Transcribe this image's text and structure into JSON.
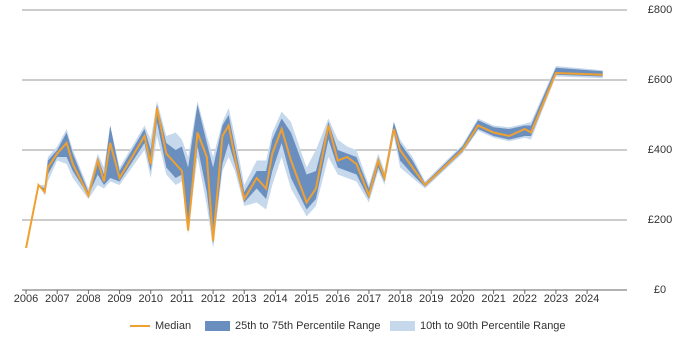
{
  "chart_data": {
    "type": "line",
    "x": [
      2006.0,
      2006.4,
      2006.6,
      2006.7,
      2007.0,
      2007.3,
      2007.5,
      2008.0,
      2008.3,
      2008.5,
      2008.7,
      2009.0,
      2009.8,
      2010.0,
      2010.2,
      2010.5,
      2010.8,
      2011.0,
      2011.2,
      2011.5,
      2011.8,
      2012.0,
      2012.3,
      2012.5,
      2012.7,
      2013.0,
      2013.4,
      2013.7,
      2013.9,
      2014.2,
      2014.5,
      2015.0,
      2015.3,
      2015.7,
      2016.0,
      2016.3,
      2016.6,
      2017.0,
      2017.3,
      2017.5,
      2017.8,
      2018.0,
      2018.4,
      2018.8,
      2020.0,
      2020.5,
      2021.0,
      2021.5,
      2022.0,
      2022.2,
      2023.0,
      2024.5
    ],
    "series": [
      {
        "name": "Median",
        "color": "#f0a030",
        "values": [
          120,
          300,
          280,
          350,
          390,
          420,
          360,
          270,
          370,
          310,
          420,
          320,
          440,
          360,
          520,
          390,
          360,
          340,
          170,
          450,
          380,
          140,
          440,
          470,
          380,
          260,
          320,
          290,
          390,
          460,
          370,
          250,
          290,
          470,
          370,
          380,
          360,
          270,
          370,
          320,
          460,
          400,
          350,
          300,
          400,
          470,
          450,
          440,
          460,
          450,
          620,
          615
        ]
      }
    ],
    "bands": [
      {
        "name": "25th to 75th Percentile Range",
        "color": "#6a8fbf",
        "lower": [
          120,
          300,
          280,
          330,
          380,
          380,
          340,
          270,
          330,
          300,
          320,
          310,
          420,
          340,
          480,
          350,
          320,
          330,
          170,
          410,
          280,
          130,
          360,
          420,
          360,
          250,
          290,
          260,
          340,
          420,
          320,
          230,
          260,
          430,
          350,
          340,
          330,
          260,
          350,
          310,
          450,
          370,
          330,
          295,
          395,
          460,
          440,
          430,
          440,
          440,
          615,
          610
        ],
        "upper": [
          120,
          300,
          290,
          370,
          400,
          450,
          390,
          280,
          380,
          330,
          470,
          340,
          460,
          400,
          530,
          420,
          400,
          410,
          350,
          530,
          420,
          350,
          470,
          500,
          410,
          280,
          340,
          340,
          430,
          490,
          450,
          330,
          340,
          480,
          400,
          390,
          380,
          290,
          380,
          330,
          480,
          420,
          370,
          305,
          410,
          485,
          465,
          460,
          470,
          470,
          635,
          625
        ]
      },
      {
        "name": "10th to 90th Percentile Range",
        "color": "#c6d8ec",
        "lower": [
          120,
          300,
          270,
          310,
          370,
          360,
          320,
          260,
          300,
          290,
          310,
          300,
          400,
          320,
          440,
          330,
          300,
          310,
          160,
          380,
          240,
          120,
          340,
          380,
          340,
          240,
          250,
          230,
          300,
          380,
          290,
          210,
          240,
          380,
          330,
          320,
          310,
          250,
          340,
          300,
          440,
          350,
          320,
          290,
          390,
          455,
          435,
          425,
          435,
          430,
          610,
          605
        ],
        "upper": [
          120,
          300,
          300,
          380,
          410,
          460,
          400,
          290,
          390,
          350,
          470,
          350,
          470,
          430,
          540,
          440,
          450,
          430,
          380,
          540,
          440,
          380,
          480,
          520,
          440,
          300,
          370,
          370,
          450,
          510,
          480,
          350,
          400,
          490,
          430,
          410,
          400,
          300,
          390,
          340,
          480,
          430,
          380,
          310,
          415,
          490,
          470,
          465,
          475,
          480,
          640,
          628
        ]
      }
    ],
    "xlim": [
      2005.87,
      2025.28
    ],
    "xticks": [
      2006,
      2007,
      2008,
      2009,
      2010,
      2011,
      2012,
      2013,
      2014,
      2015,
      2016,
      2017,
      2018,
      2019,
      2020,
      2021,
      2022,
      2023,
      2024
    ],
    "ylim": [
      0,
      800
    ],
    "yticks": [
      {
        "value": 0,
        "label": "£0"
      },
      {
        "value": 200,
        "label": "£200"
      },
      {
        "value": 400,
        "label": "£400"
      },
      {
        "value": 600,
        "label": "£600"
      },
      {
        "value": 800,
        "label": "£800"
      }
    ],
    "grid": true
  }
}
